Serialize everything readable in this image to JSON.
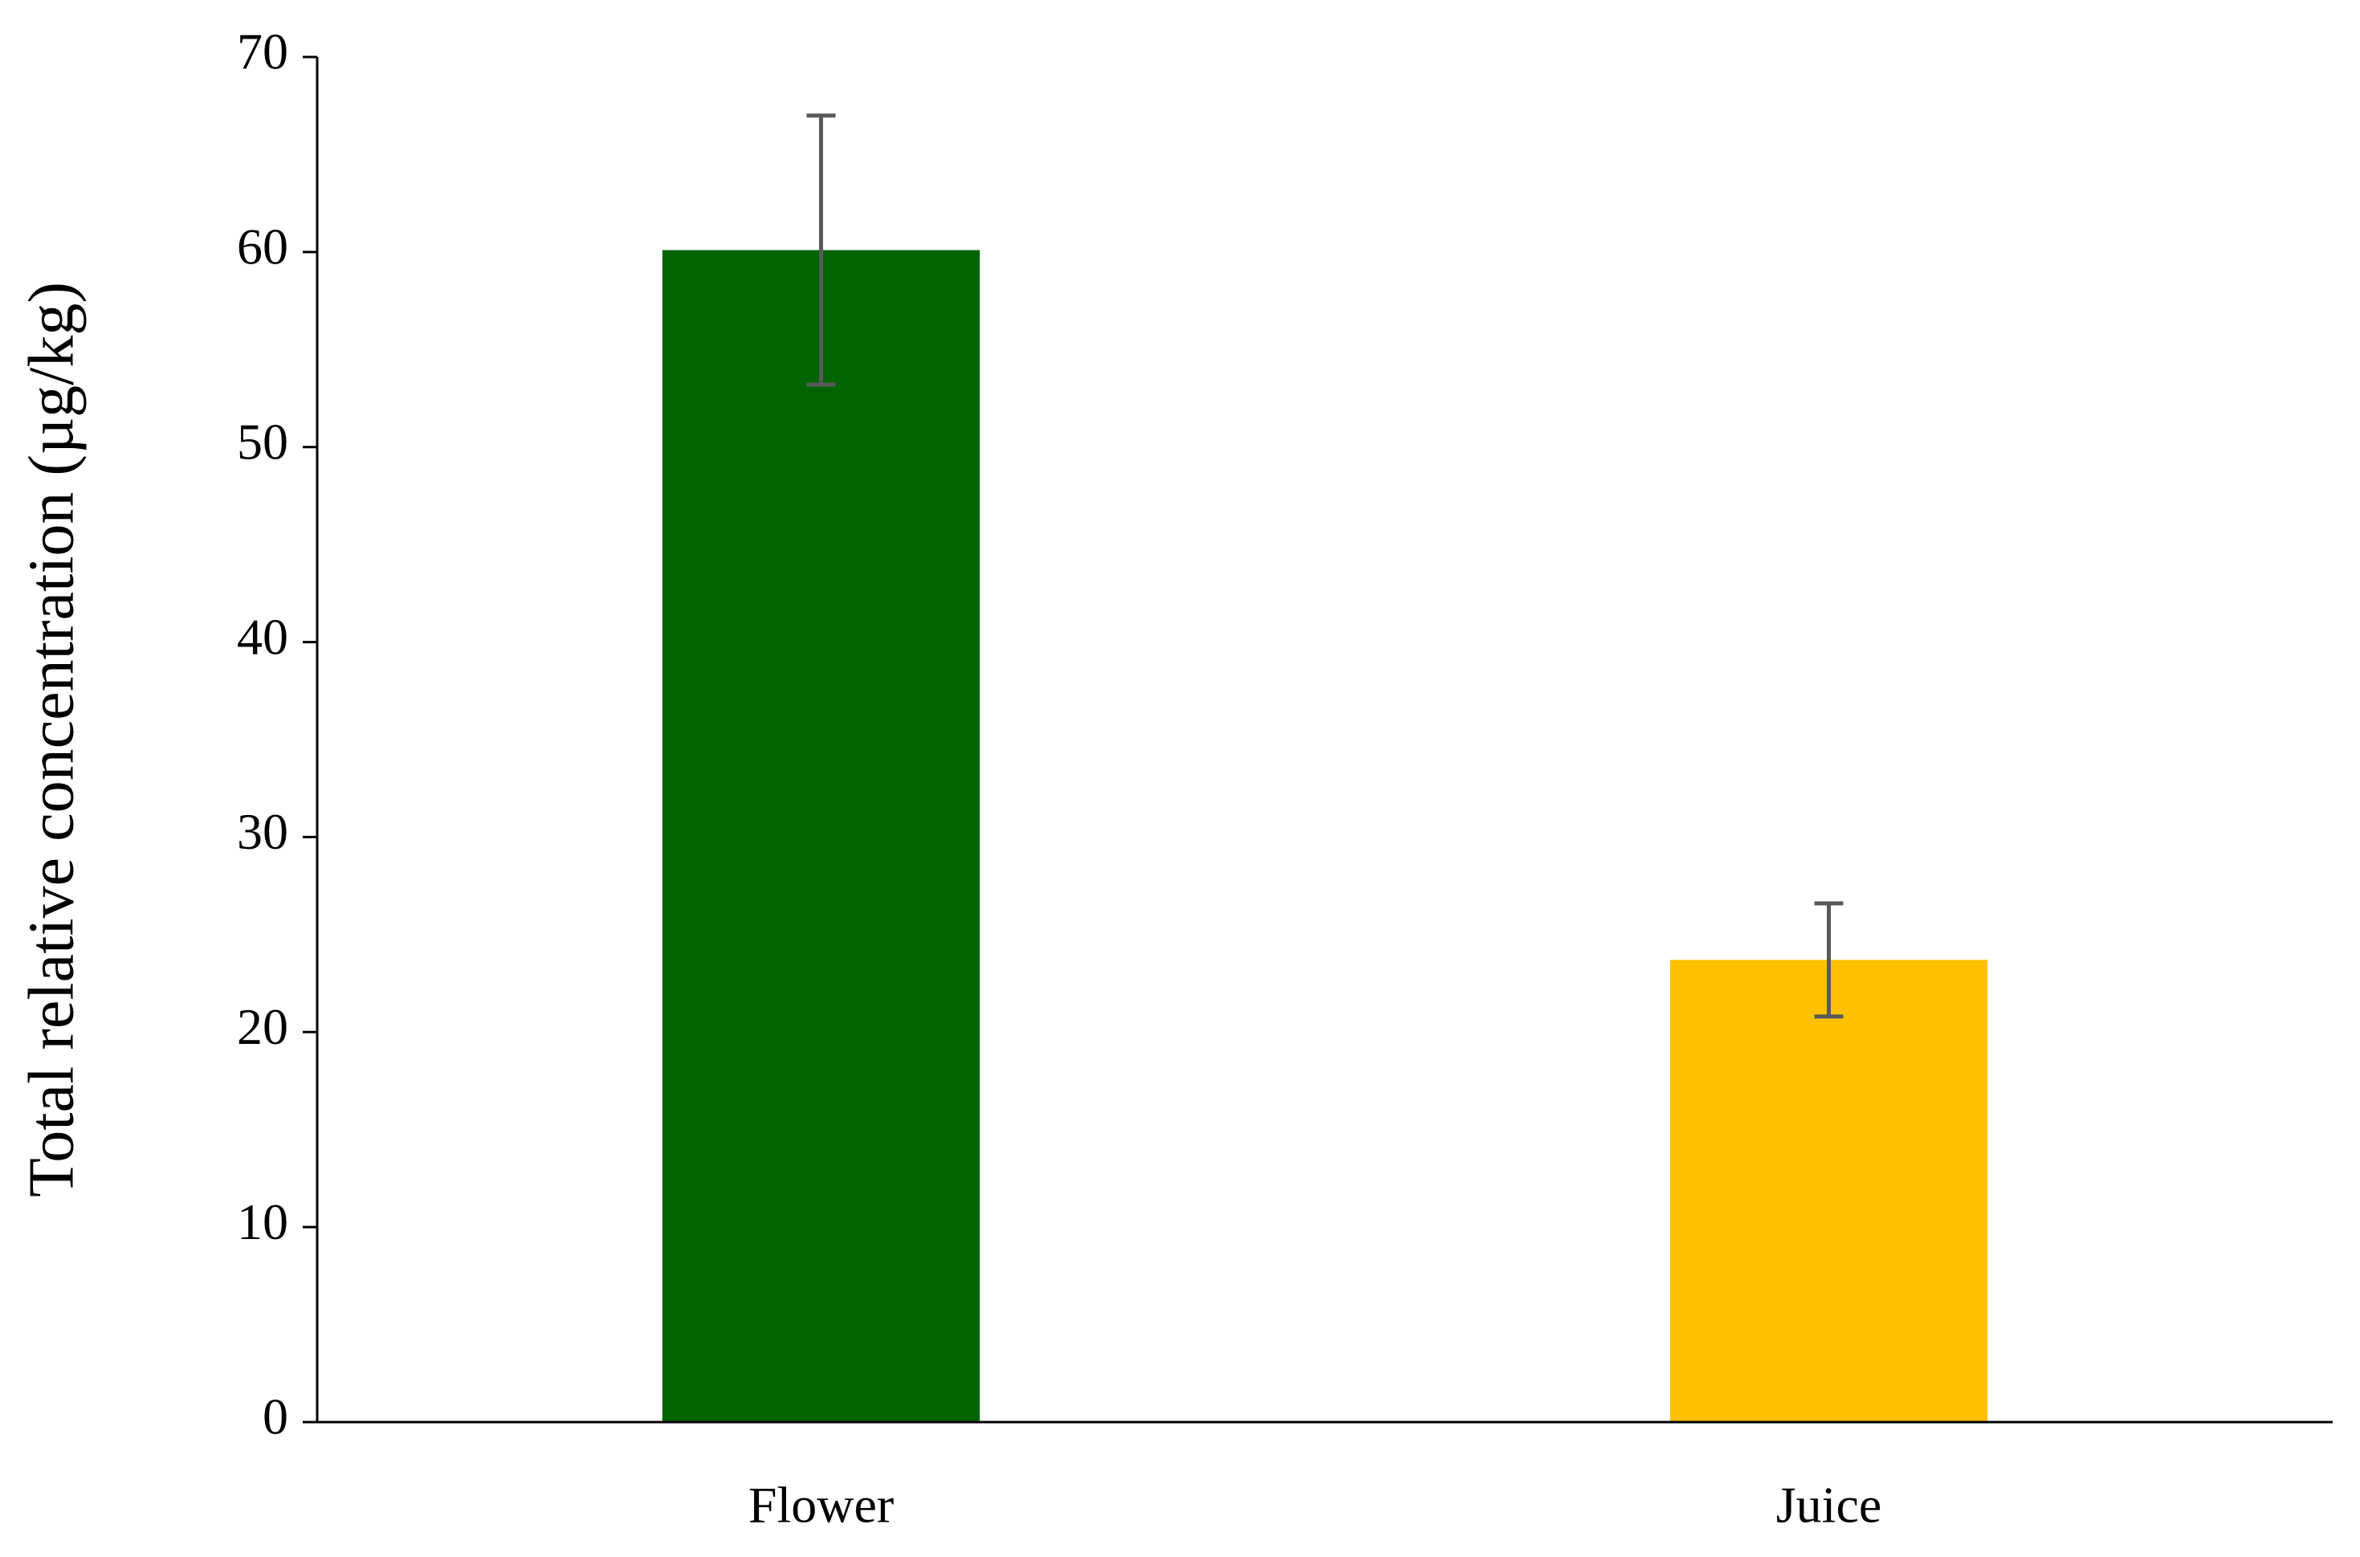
{
  "chart_data": {
    "type": "bar",
    "y_label": "Total relative  concentration (µg/kg)",
    "categories": [
      "Flower",
      "Juice"
    ],
    "values": [
      60.1,
      23.7
    ],
    "errors": [
      6.9,
      2.9
    ],
    "colors": [
      "#006400",
      "#ffc000"
    ],
    "error_color": "#595959",
    "ylim": [
      0,
      70
    ],
    "yticks": [
      0,
      10,
      20,
      30,
      40,
      50,
      60,
      70
    ],
    "grid": false
  }
}
